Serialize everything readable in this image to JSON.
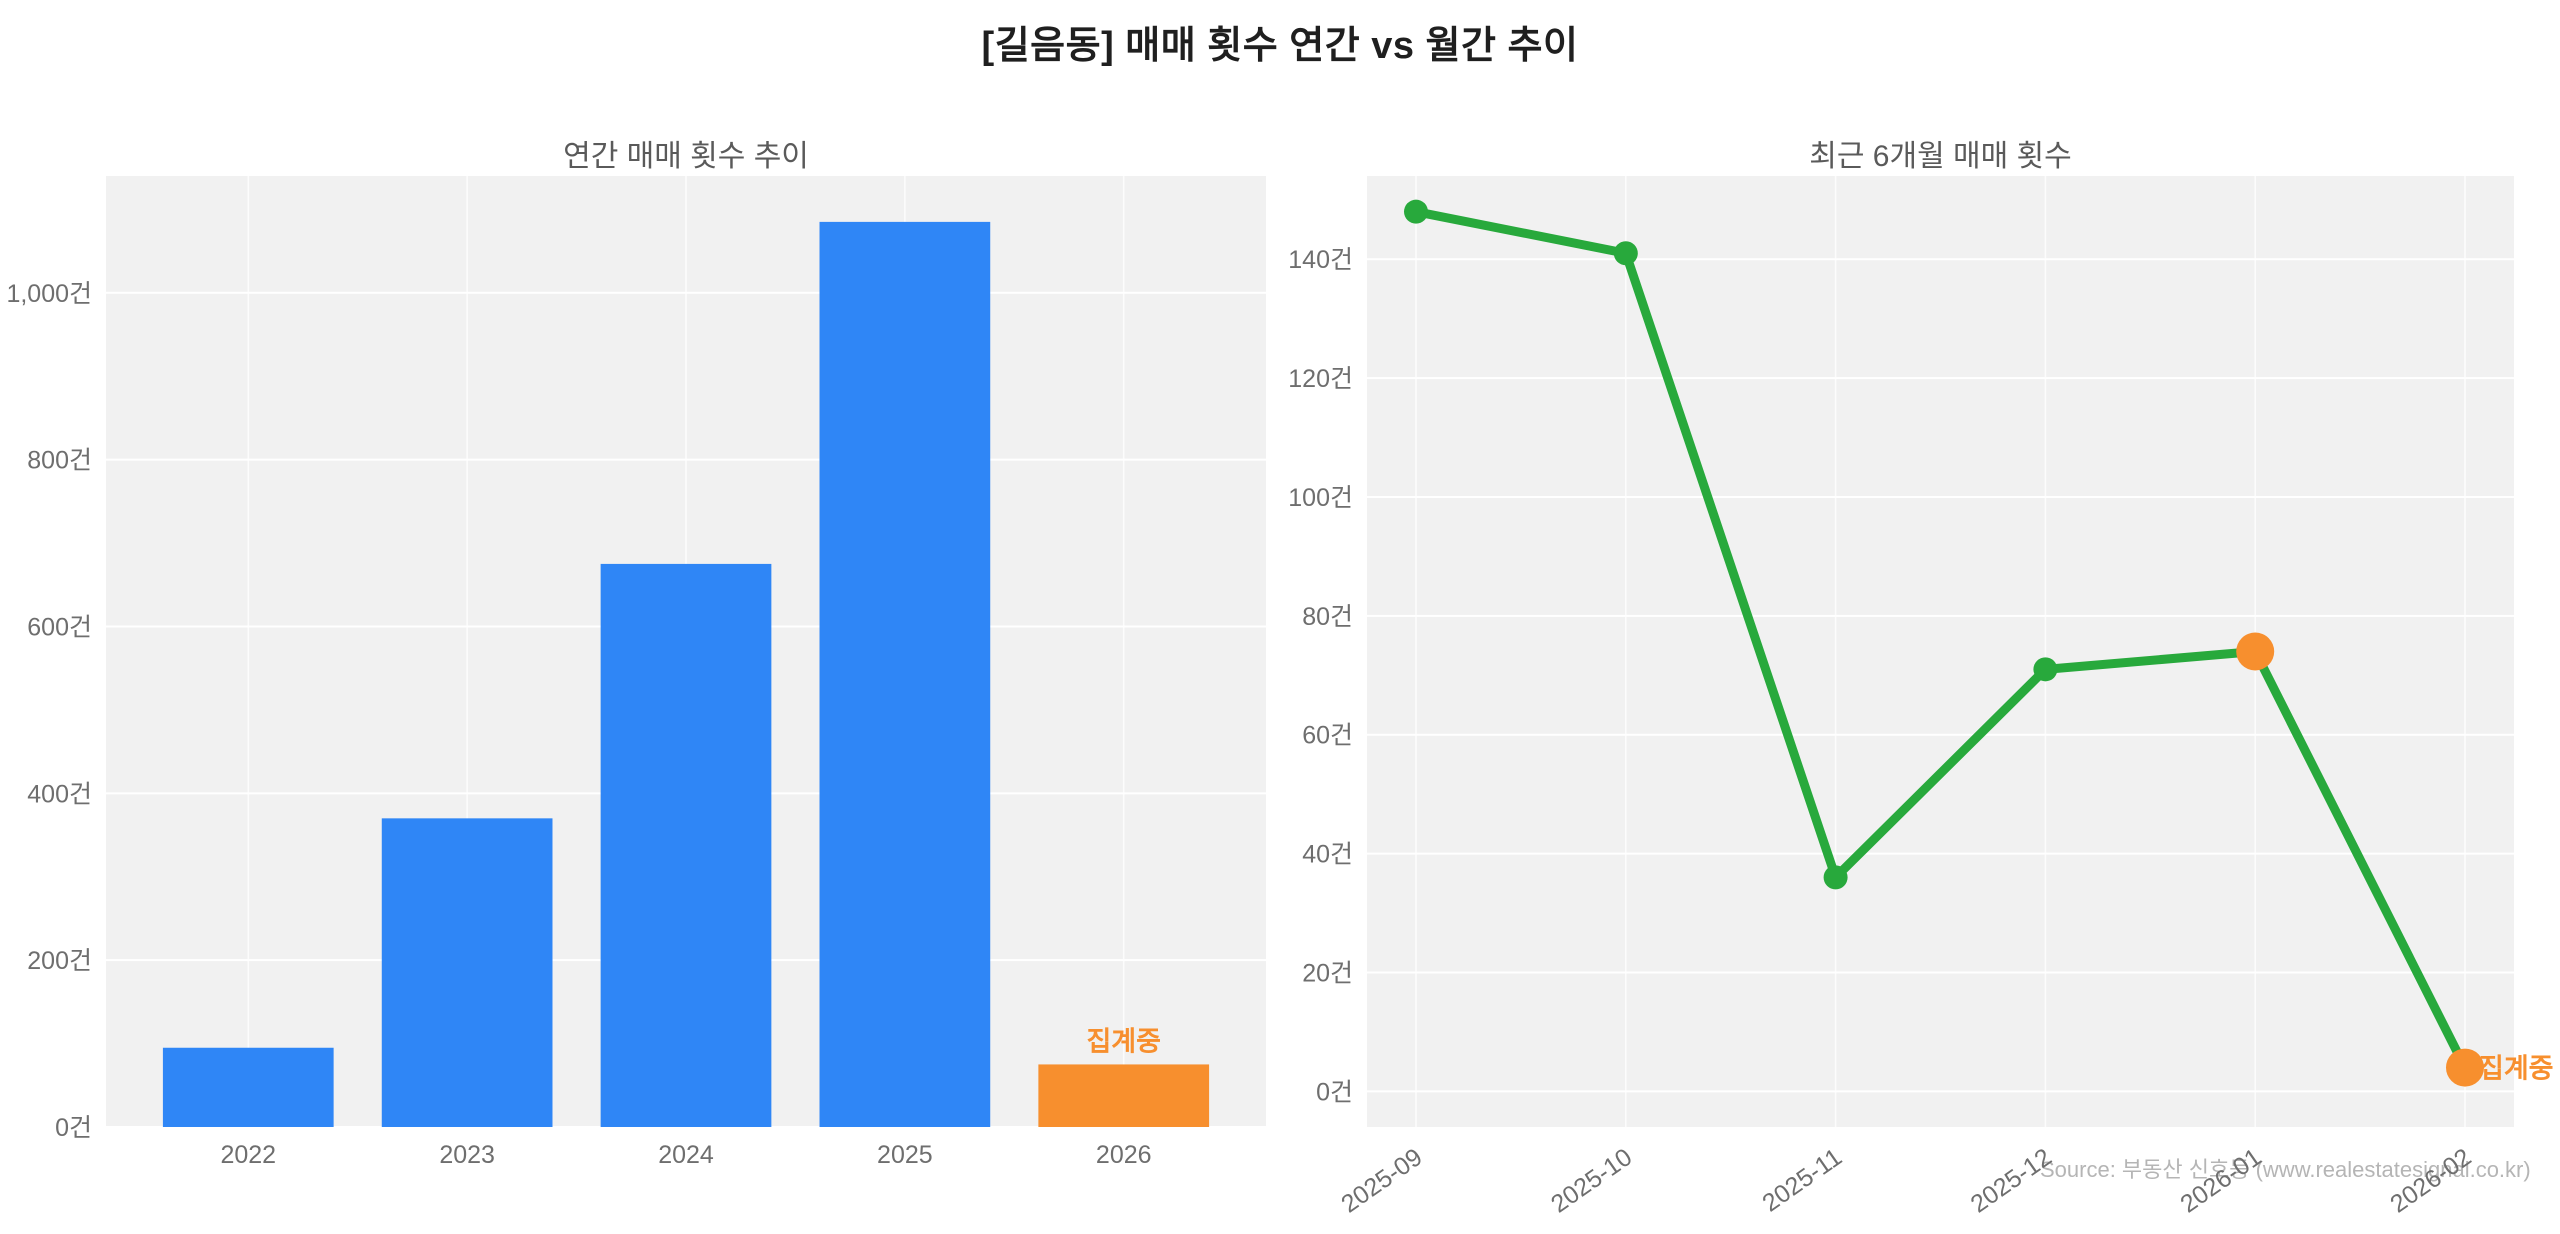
{
  "page": {
    "title": "[길음동] 매매 횟수 연간 vs 월간 추이",
    "source": "Source: 부동산 신호등 (www.realestatesignal.co.kr)"
  },
  "colors": {
    "bar_blue": "#2f86f6",
    "accent_orange": "#f78f2e",
    "line_green": "#28a93c",
    "plot_bg": "#f1f1f1",
    "grid": "#ffffff",
    "tick_text": "#6e6e6e",
    "subtitle_text": "#5a5a5a",
    "title_text": "#1f1f1f",
    "source_text": "#b5b5b5"
  },
  "chart_data": [
    {
      "type": "bar",
      "title": "연간 매매 횟수 추이",
      "categories": [
        "2022",
        "2023",
        "2024",
        "2025",
        "2026"
      ],
      "values": [
        95,
        370,
        675,
        1085,
        75
      ],
      "bar_colors": [
        "blue",
        "blue",
        "blue",
        "blue",
        "orange"
      ],
      "annotation": {
        "text": "집계중",
        "index": 4
      },
      "ylim": [
        0,
        1140
      ],
      "yticks": [
        0,
        200,
        400,
        600,
        800,
        1000
      ],
      "ytick_suffix": "건",
      "grid": true,
      "legend": "none"
    },
    {
      "type": "line",
      "title": "최근 6개월 매매 횟수",
      "x": [
        "2025-09",
        "2025-10",
        "2025-11",
        "2025-12",
        "2026-01",
        "2026-02"
      ],
      "values": [
        148,
        141,
        36,
        71,
        74,
        4
      ],
      "highlight_indices": [
        4,
        5
      ],
      "annotation": {
        "text": "집계중",
        "index": 5
      },
      "ylim": [
        -6,
        154
      ],
      "yticks": [
        0,
        20,
        40,
        60,
        80,
        100,
        120,
        140
      ],
      "ytick_suffix": "건",
      "xtick_rotation": -35,
      "grid": true,
      "legend": "none"
    }
  ]
}
